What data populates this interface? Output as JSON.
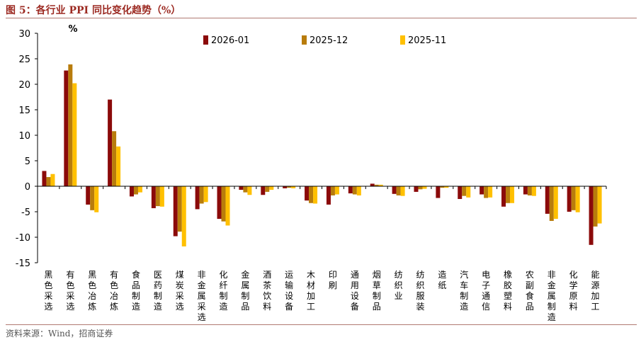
{
  "header": {
    "title": "图 5：各行业 PPI 同比变化趋势（%）"
  },
  "footer": {
    "source": "资料来源：Wind，招商证券"
  },
  "chart_data": {
    "type": "bar",
    "title": "各行业 PPI 同比变化趋势（%）",
    "unit_label": "%",
    "xlabel": "",
    "ylabel": "",
    "ylim": [
      -15,
      30
    ],
    "yticks": [
      -15,
      -10,
      -5,
      0,
      5,
      10,
      15,
      20,
      25,
      30
    ],
    "legend_position": "top-right",
    "categories": [
      "黑色采选",
      "有色采选",
      "黑色冶炼",
      "有色冶炼",
      "食品制造",
      "医药制造",
      "煤炭采选",
      "非金属采选",
      "化纤制造",
      "金属制品",
      "酒茶饮料",
      "运输设备",
      "木材加工",
      "印刷",
      "通用设备",
      "烟草制品",
      "纺织业",
      "纺织服装",
      "造纸",
      "汽车制造",
      "电子通信",
      "橡胶塑料",
      "农副食品",
      "非金属制造",
      "化学原料",
      "能源加工"
    ],
    "series": [
      {
        "name": "2026-01",
        "color": "#8b0a0a",
        "values": [
          3.0,
          22.7,
          -3.6,
          17.0,
          -2.0,
          -4.3,
          -9.8,
          -4.5,
          -6.4,
          -0.7,
          -1.7,
          -0.4,
          -2.8,
          -3.6,
          -1.4,
          0.5,
          -1.5,
          -1.1,
          -2.3,
          -2.5,
          -1.6,
          -4.0,
          -1.6,
          -5.4,
          -5.0,
          -11.5
        ]
      },
      {
        "name": "2025-12",
        "color": "#b87c0c",
        "values": [
          1.8,
          23.9,
          -4.7,
          10.8,
          -1.6,
          -3.9,
          -8.9,
          -3.4,
          -6.9,
          -1.2,
          -1.1,
          -0.3,
          -3.3,
          -1.8,
          -1.6,
          0.3,
          -1.8,
          -0.6,
          -0.3,
          -1.9,
          -2.3,
          -3.3,
          -1.8,
          -6.8,
          -4.7,
          -7.9
        ]
      },
      {
        "name": "2025-11",
        "color": "#ffc000",
        "values": [
          2.4,
          20.2,
          -5.1,
          7.8,
          -1.2,
          -4.0,
          -11.8,
          -3.1,
          -7.7,
          -1.7,
          -0.7,
          -0.4,
          -3.4,
          -1.6,
          -1.8,
          0.3,
          -1.9,
          -0.5,
          -0.3,
          -2.2,
          -2.2,
          -3.3,
          -1.9,
          -6.4,
          -5.1,
          -7.3
        ]
      }
    ]
  }
}
